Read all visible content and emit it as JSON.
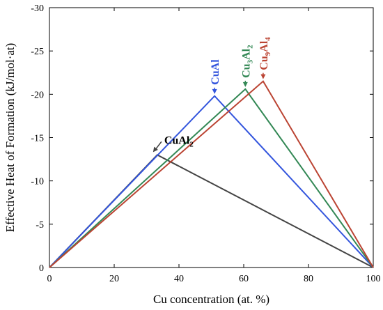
{
  "chart_data": {
    "type": "line",
    "xlabel": "Cu concentration (at. %)",
    "ylabel": "Effective Heat of Formation (kJ/mol·at)",
    "xlim": [
      0,
      100
    ],
    "ylim": [
      0,
      -30
    ],
    "y_axis_inverted": true,
    "x_ticks": [
      0,
      20,
      40,
      60,
      80,
      100
    ],
    "y_ticks": [
      0,
      -5,
      -10,
      -15,
      -20,
      -25,
      -30
    ],
    "grid": false,
    "legend": "none",
    "series": [
      {
        "color": "#444444",
        "x": [
          0,
          33.3,
          100
        ],
        "y": [
          0,
          -13.0,
          0
        ],
        "label_parts": [
          {
            "t": "CuAl"
          },
          {
            "t": "2",
            "sub": true
          }
        ]
      },
      {
        "color": "#3355dd",
        "x": [
          0,
          51,
          100
        ],
        "y": [
          0,
          -19.8,
          0
        ],
        "label_parts": [
          {
            "t": "CuAl"
          }
        ]
      },
      {
        "color": "#338855",
        "x": [
          0,
          60.5,
          100
        ],
        "y": [
          0,
          -20.6,
          0
        ],
        "label_parts": [
          {
            "t": "Cu"
          },
          {
            "t": "3",
            "sub": true
          },
          {
            "t": "Al"
          },
          {
            "t": "2",
            "sub": true
          }
        ]
      },
      {
        "color": "#bb4433",
        "x": [
          0,
          66,
          100
        ],
        "y": [
          0,
          -21.5,
          0
        ],
        "label_parts": [
          {
            "t": "Cu"
          },
          {
            "t": "9",
            "sub": true
          },
          {
            "t": "Al"
          },
          {
            "t": "4",
            "sub": true
          }
        ]
      }
    ]
  }
}
